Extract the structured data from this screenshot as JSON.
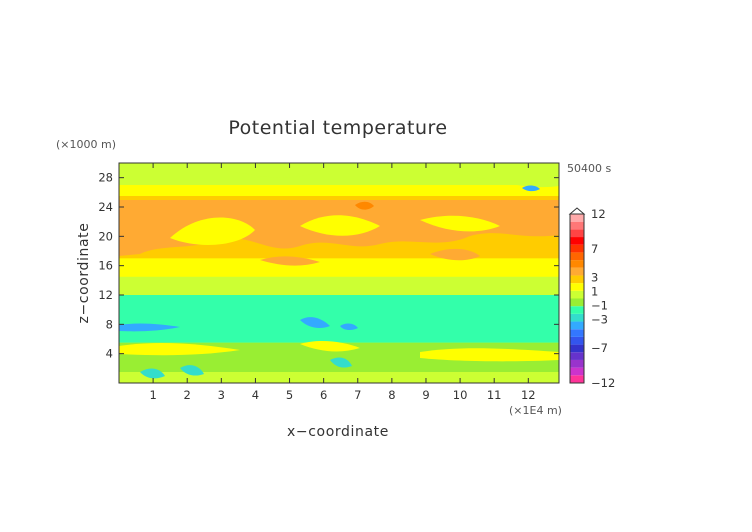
{
  "chart_data": {
    "type": "heatmap",
    "title": "Potential temperature",
    "xlabel": "x−coordinate",
    "ylabel": "z−coordinate",
    "x_unit": "(×1E4 m)",
    "y_unit": "(×1000 m)",
    "time_label": "50400 s",
    "xlim": [
      0,
      12.9
    ],
    "ylim": [
      0,
      30
    ],
    "x_ticks": [
      1,
      2,
      3,
      4,
      5,
      6,
      7,
      8,
      9,
      10,
      11,
      12
    ],
    "y_ticks": [
      4,
      8,
      12,
      16,
      20,
      24,
      28
    ],
    "colorbar": {
      "levels": [
        -12,
        -10,
        -9,
        -8,
        -7,
        -6,
        -5,
        -4,
        -3,
        -2,
        -1,
        0,
        1,
        2,
        3,
        4,
        5,
        6,
        7,
        8,
        9,
        10,
        12
      ],
      "labels": [
        "12",
        "7",
        "3",
        "1",
        "−1",
        "−3",
        "−7",
        "−12"
      ],
      "label_values": [
        12,
        7,
        3,
        1,
        -1,
        -3,
        -7,
        -12
      ],
      "colors": [
        "#ff3399",
        "#cc33cc",
        "#9933cc",
        "#6633cc",
        "#3333cc",
        "#3355ee",
        "#3377ff",
        "#33aaff",
        "#33ddcc",
        "#33ffaa",
        "#99ee33",
        "#ccff33",
        "#ffff00",
        "#ffcc00",
        "#ffaa33",
        "#ff8800",
        "#ff6600",
        "#ff3300",
        "#ff0000",
        "#ff4444",
        "#ff7777",
        "#ffaaaa"
      ]
    },
    "bands": [
      {
        "z": [
          0,
          1.5
        ],
        "value": 0.5
      },
      {
        "z": [
          1.5,
          5.5
        ],
        "value": -0.5
      },
      {
        "z": [
          5.5,
          12
        ],
        "value": -1.5
      },
      {
        "z": [
          12,
          14.5
        ],
        "value": 0.5
      },
      {
        "z": [
          14.5,
          17
        ],
        "value": 1.5
      },
      {
        "z": [
          17,
          25.5
        ],
        "value": 2.5
      },
      {
        "z": [
          25.5,
          27
        ],
        "value": 1.5
      },
      {
        "z": [
          27,
          30
        ],
        "value": 0.5
      }
    ]
  }
}
